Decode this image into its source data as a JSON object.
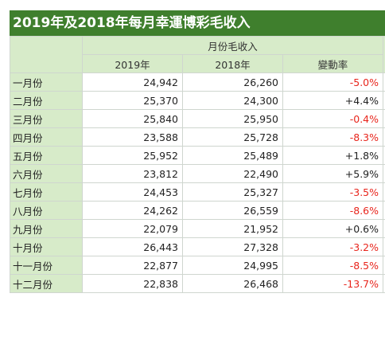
{
  "title": "2019年及2018年每月幸運博彩毛收入",
  "group_header": "月份毛收入",
  "columns": [
    "2019年",
    "2018年",
    "變動率"
  ],
  "rows": [
    {
      "month": "一月份",
      "y2019": "24,942",
      "y2018": "26,260",
      "change": "-5.0%",
      "negative": true
    },
    {
      "month": "二月份",
      "y2019": "25,370",
      "y2018": "24,300",
      "change": "+4.4%",
      "negative": false
    },
    {
      "month": "三月份",
      "y2019": "25,840",
      "y2018": "25,950",
      "change": "-0.4%",
      "negative": true
    },
    {
      "month": "四月份",
      "y2019": "23,588",
      "y2018": "25,728",
      "change": "-8.3%",
      "negative": true
    },
    {
      "month": "五月份",
      "y2019": "25,952",
      "y2018": "25,489",
      "change": "+1.8%",
      "negative": false
    },
    {
      "month": "六月份",
      "y2019": "23,812",
      "y2018": "22,490",
      "change": "+5.9%",
      "negative": false
    },
    {
      "month": "七月份",
      "y2019": "24,453",
      "y2018": "25,327",
      "change": "-3.5%",
      "negative": true
    },
    {
      "month": "八月份",
      "y2019": "24,262",
      "y2018": "26,559",
      "change": "-8.6%",
      "negative": true
    },
    {
      "month": "九月份",
      "y2019": "22,079",
      "y2018": "21,952",
      "change": "+0.6%",
      "negative": false
    },
    {
      "month": "十月份",
      "y2019": "26,443",
      "y2018": "27,328",
      "change": "-3.2%",
      "negative": true
    },
    {
      "month": "十一月份",
      "y2019": "22,877",
      "y2018": "24,995",
      "change": "-8.5%",
      "negative": true
    },
    {
      "month": "十二月份",
      "y2019": "22,838",
      "y2018": "26,468",
      "change": "-13.7%",
      "negative": true
    }
  ],
  "colors": {
    "title_bg": "#3f7f2d",
    "header_bg": "#d7ebc9",
    "negative": "#e8251c",
    "positive": "#222222"
  }
}
